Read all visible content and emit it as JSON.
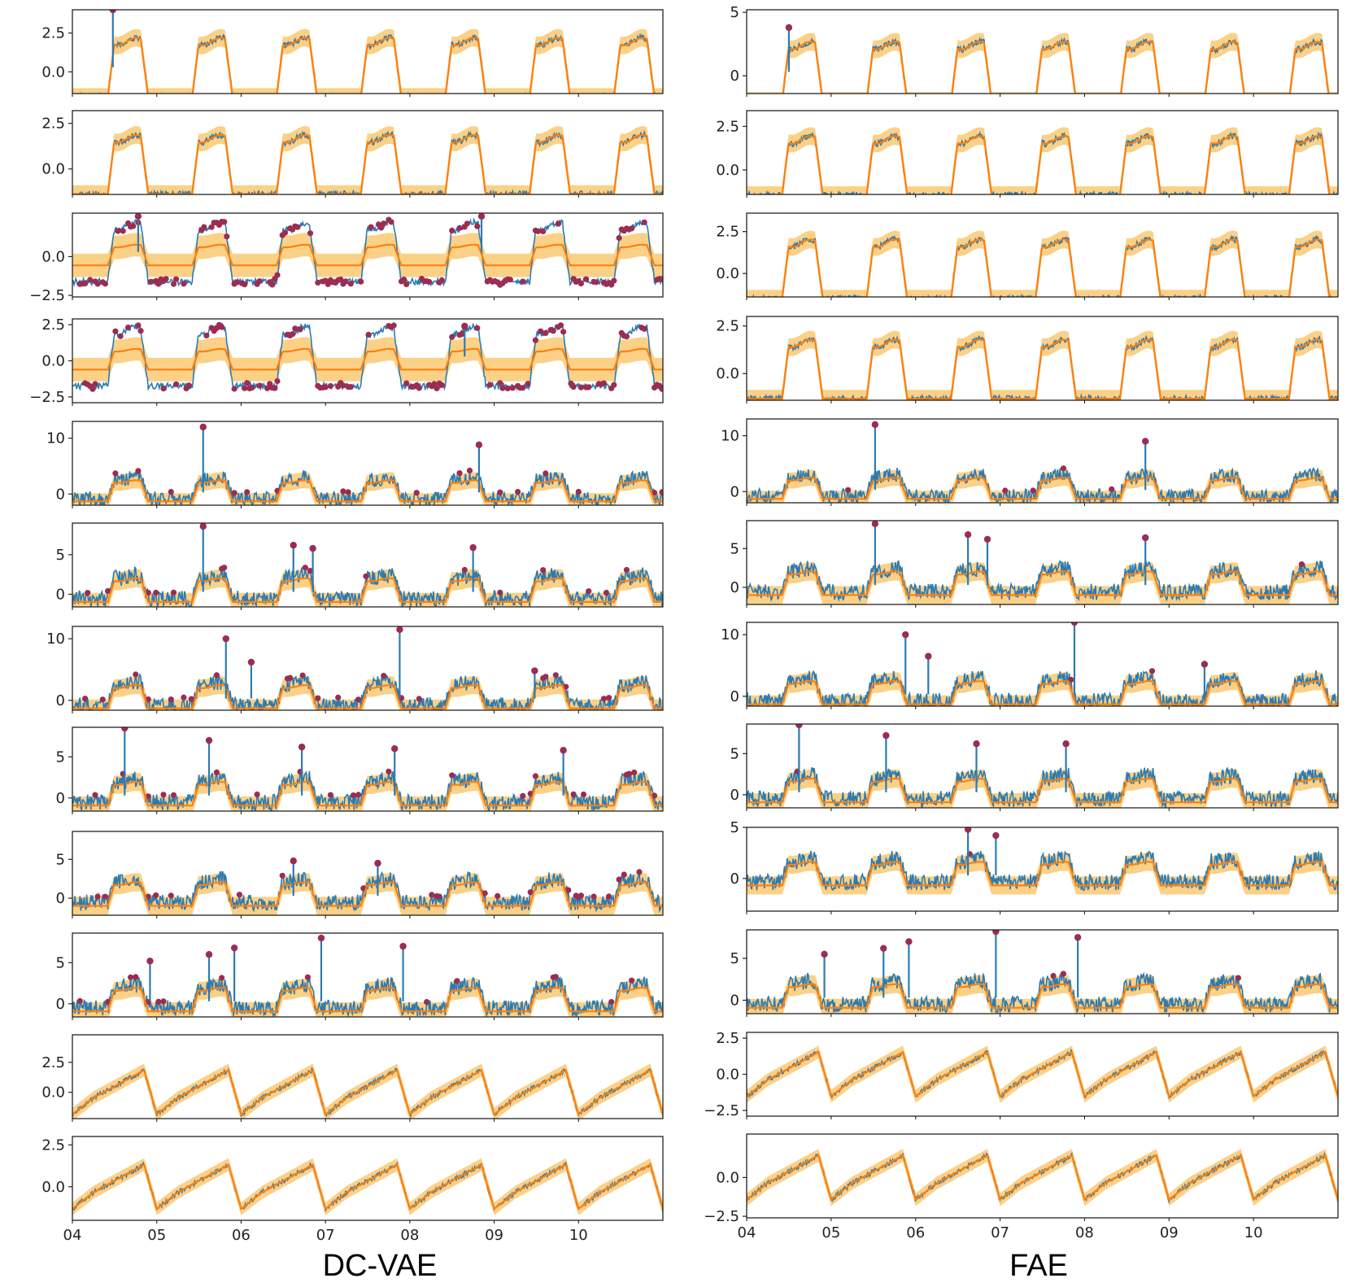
{
  "figure": {
    "panels": [
      {
        "caption": "DC-VAE",
        "x_tick_labels": [
          "04",
          "05",
          "06",
          "07",
          "08",
          "09",
          "10"
        ]
      },
      {
        "caption": "FAE",
        "x_tick_labels": [
          "04",
          "05",
          "06",
          "07",
          "08",
          "09",
          "10"
        ]
      }
    ]
  },
  "colors": {
    "signal": "#2b7bb3",
    "prediction": "#ff7f0e",
    "band": "#f9c15f",
    "anomaly": "#9b2d52",
    "axes": "#222222"
  },
  "chart_data": [
    {
      "type": "line",
      "title": "DC-VAE",
      "x_domain": [
        4,
        11
      ],
      "x_tick_labels": [
        "04",
        "05",
        "06",
        "07",
        "08",
        "09",
        "10"
      ],
      "subplots": [
        {
          "ylim": [
            -1.4,
            4.0
          ],
          "yticks": [
            0,
            2.5
          ],
          "ytick_labels": [
            "0.0",
            "2.5"
          ],
          "style": "plateau",
          "anomaly_mode": "both",
          "seed": 11,
          "spikes": [
            {
              "day": 4.48,
              "value": 4.0
            }
          ]
        },
        {
          "ylim": [
            -1.4,
            3.2
          ],
          "yticks": [
            0,
            2.5
          ],
          "ytick_labels": [
            "0.0",
            "2.5"
          ],
          "style": "plateau",
          "anomaly_mode": "both",
          "seed": 12,
          "spikes": []
        },
        {
          "ylim": [
            -2.6,
            2.8
          ],
          "yticks": [
            -2.5,
            0
          ],
          "ytick_labels": [
            "−2.5",
            "0.0"
          ],
          "style": "offset",
          "anomaly_mode": "both",
          "seed": 13,
          "spikes": [
            {
              "day": 4.78,
              "value": 2.6
            },
            {
              "day": 8.85,
              "value": 2.6
            }
          ]
        },
        {
          "ylim": [
            -2.9,
            2.9
          ],
          "yticks": [
            -2.5,
            0,
            2.5
          ],
          "ytick_labels": [
            "−2.5",
            "0.0",
            "2.5"
          ],
          "style": "offset",
          "anomaly_mode": "both",
          "seed": 14,
          "spikes": [
            {
              "day": 8.65,
              "value": 2.4
            }
          ]
        },
        {
          "ylim": [
            -2.0,
            13.0
          ],
          "yticks": [
            0,
            10
          ],
          "ytick_labels": [
            "0",
            "10"
          ],
          "style": "noisy",
          "anomaly_mode": "both",
          "seed": 15,
          "spikes": [
            {
              "day": 5.55,
              "value": 12.0
            },
            {
              "day": 8.82,
              "value": 8.8
            }
          ]
        },
        {
          "ylim": [
            -1.6,
            9.0
          ],
          "yticks": [
            0,
            5
          ],
          "ytick_labels": [
            "0",
            "5"
          ],
          "style": "noisy",
          "anomaly_mode": "both",
          "seed": 16,
          "spikes": [
            {
              "day": 5.55,
              "value": 8.6
            },
            {
              "day": 6.62,
              "value": 6.2
            },
            {
              "day": 6.85,
              "value": 5.8
            },
            {
              "day": 8.75,
              "value": 5.9
            }
          ]
        },
        {
          "ylim": [
            -1.6,
            12.0
          ],
          "yticks": [
            0,
            10
          ],
          "ytick_labels": [
            "0",
            "10"
          ],
          "style": "noisy",
          "anomaly_mode": "both",
          "seed": 17,
          "spikes": [
            {
              "day": 5.82,
              "value": 10.0
            },
            {
              "day": 6.12,
              "value": 6.2
            },
            {
              "day": 7.88,
              "value": 11.5
            },
            {
              "day": 9.48,
              "value": 4.8
            }
          ]
        },
        {
          "ylim": [
            -1.6,
            8.6
          ],
          "yticks": [
            0,
            5
          ],
          "ytick_labels": [
            "0",
            "5"
          ],
          "style": "noisy",
          "anomaly_mode": "both",
          "seed": 18,
          "spikes": [
            {
              "day": 4.62,
              "value": 8.5
            },
            {
              "day": 5.62,
              "value": 7.0
            },
            {
              "day": 6.72,
              "value": 6.2
            },
            {
              "day": 7.82,
              "value": 6.0
            },
            {
              "day": 9.82,
              "value": 5.8
            }
          ]
        },
        {
          "ylim": [
            -2.2,
            8.6
          ],
          "yticks": [
            0,
            5
          ],
          "ytick_labels": [
            "0",
            "5"
          ],
          "style": "noisy",
          "anomaly_mode": "both",
          "seed": 19,
          "spikes": [
            {
              "day": 6.62,
              "value": 4.8
            },
            {
              "day": 7.62,
              "value": 4.5
            }
          ]
        },
        {
          "ylim": [
            -1.6,
            8.6
          ],
          "yticks": [
            0,
            5
          ],
          "ytick_labels": [
            "0",
            "5"
          ],
          "style": "noisy",
          "anomaly_mode": "both",
          "seed": 20,
          "spikes": [
            {
              "day": 4.92,
              "value": 5.2
            },
            {
              "day": 5.62,
              "value": 6.0
            },
            {
              "day": 5.92,
              "value": 6.8
            },
            {
              "day": 6.95,
              "value": 8.0
            },
            {
              "day": 7.92,
              "value": 7.0
            }
          ]
        },
        {
          "ylim": [
            -2.2,
            4.8
          ],
          "yticks": [
            0,
            2.5
          ],
          "ytick_labels": [
            "0.0",
            "2.5"
          ],
          "style": "sawtooth",
          "anomaly_mode": "low",
          "seed": 21,
          "spikes": []
        },
        {
          "ylim": [
            -2.0,
            3.0
          ],
          "yticks": [
            0,
            2.5
          ],
          "ytick_labels": [
            "0.0",
            "2.5"
          ],
          "style": "sawtooth",
          "anomaly_mode": "low",
          "seed": 22,
          "spikes": []
        }
      ]
    },
    {
      "type": "line",
      "title": "FAE",
      "x_domain": [
        4,
        11
      ],
      "x_tick_labels": [
        "04",
        "05",
        "06",
        "07",
        "08",
        "09",
        "10"
      ],
      "subplots": [
        {
          "ylim": [
            -1.4,
            5.2
          ],
          "yticks": [
            0,
            5
          ],
          "ytick_labels": [
            "0",
            "5"
          ],
          "style": "plateau",
          "anomaly_mode": "sparse",
          "seed": 31,
          "spikes": [
            {
              "day": 4.5,
              "value": 3.8
            }
          ]
        },
        {
          "ylim": [
            -1.4,
            3.4
          ],
          "yticks": [
            0,
            2.5
          ],
          "ytick_labels": [
            "0.0",
            "2.5"
          ],
          "style": "plateau",
          "anomaly_mode": "sparse",
          "seed": 32,
          "spikes": []
        },
        {
          "ylim": [
            -1.4,
            3.6
          ],
          "yticks": [
            0,
            2.5
          ],
          "ytick_labels": [
            "0.0",
            "2.5"
          ],
          "style": "plateau",
          "anomaly_mode": "sparse",
          "seed": 33,
          "spikes": []
        },
        {
          "ylim": [
            -1.4,
            3.0
          ],
          "yticks": [
            0,
            2.5
          ],
          "ytick_labels": [
            "0.0",
            "2.5"
          ],
          "style": "plateau",
          "anomaly_mode": "sparse",
          "seed": 34,
          "spikes": []
        },
        {
          "ylim": [
            -2.0,
            13.0
          ],
          "yticks": [
            0,
            10
          ],
          "ytick_labels": [
            "0",
            "10"
          ],
          "style": "noisy",
          "anomaly_mode": "sparse",
          "seed": 35,
          "spikes": [
            {
              "day": 5.52,
              "value": 12.0
            },
            {
              "day": 8.72,
              "value": 9.0
            }
          ]
        },
        {
          "ylim": [
            -2.2,
            8.6
          ],
          "yticks": [
            0,
            5
          ],
          "ytick_labels": [
            "0",
            "5"
          ],
          "style": "noisy",
          "anomaly_mode": "sparse",
          "seed": 36,
          "spikes": [
            {
              "day": 5.52,
              "value": 8.2
            },
            {
              "day": 6.62,
              "value": 6.8
            },
            {
              "day": 6.85,
              "value": 6.2
            },
            {
              "day": 8.72,
              "value": 6.4
            }
          ]
        },
        {
          "ylim": [
            -1.6,
            12.0
          ],
          "yticks": [
            0,
            10
          ],
          "ytick_labels": [
            "0",
            "10"
          ],
          "style": "noisy",
          "anomaly_mode": "sparse",
          "seed": 37,
          "spikes": [
            {
              "day": 5.88,
              "value": 10.0
            },
            {
              "day": 6.15,
              "value": 6.5
            },
            {
              "day": 7.88,
              "value": 12.0
            },
            {
              "day": 9.42,
              "value": 5.2
            }
          ]
        },
        {
          "ylim": [
            -1.6,
            8.6
          ],
          "yticks": [
            0,
            5
          ],
          "ytick_labels": [
            "0",
            "5"
          ],
          "style": "noisy",
          "anomaly_mode": "sparse",
          "seed": 38,
          "spikes": [
            {
              "day": 4.62,
              "value": 8.5
            },
            {
              "day": 5.65,
              "value": 7.2
            },
            {
              "day": 6.72,
              "value": 6.2
            },
            {
              "day": 7.78,
              "value": 6.2
            }
          ]
        },
        {
          "ylim": [
            -3.2,
            5.0
          ],
          "yticks": [
            0,
            5
          ],
          "ytick_labels": [
            "0",
            "5"
          ],
          "style": "noisy",
          "anomaly_mode": "sparse",
          "seed": 39,
          "spikes": [
            {
              "day": 6.62,
              "value": 4.8
            },
            {
              "day": 6.95,
              "value": 4.2
            }
          ]
        },
        {
          "ylim": [
            -1.6,
            8.4
          ],
          "yticks": [
            0,
            5
          ],
          "ytick_labels": [
            "0",
            "5"
          ],
          "style": "noisy",
          "anomaly_mode": "sparse",
          "seed": 40,
          "spikes": [
            {
              "day": 4.92,
              "value": 5.5
            },
            {
              "day": 5.62,
              "value": 6.2
            },
            {
              "day": 5.92,
              "value": 7.0
            },
            {
              "day": 6.95,
              "value": 8.2
            },
            {
              "day": 7.92,
              "value": 7.5
            }
          ]
        },
        {
          "ylim": [
            -2.9,
            2.9
          ],
          "yticks": [
            -2.5,
            0,
            2.5
          ],
          "ytick_labels": [
            "−2.5",
            "0.0",
            "2.5"
          ],
          "style": "sawtooth",
          "anomaly_mode": "sparse",
          "seed": 41,
          "spikes": []
        },
        {
          "ylim": [
            -2.6,
            2.8
          ],
          "yticks": [
            -2.5,
            0
          ],
          "ytick_labels": [
            "−2.5",
            "0.0"
          ],
          "style": "sawtooth",
          "anomaly_mode": "sparse",
          "seed": 42,
          "spikes": []
        }
      ]
    }
  ]
}
